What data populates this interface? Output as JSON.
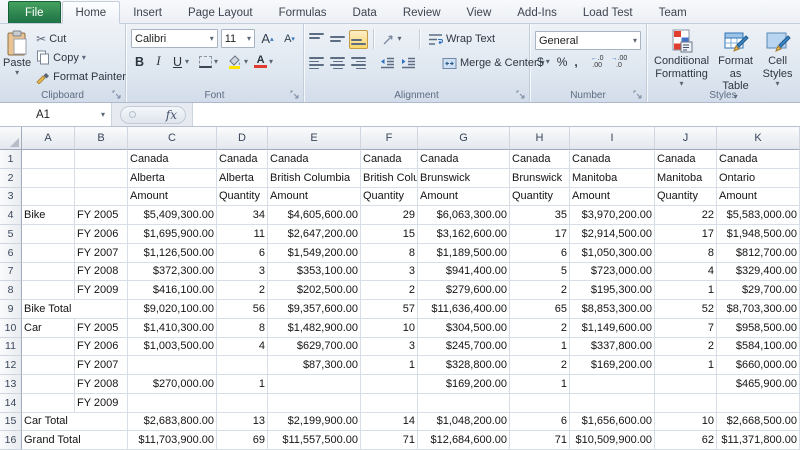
{
  "ribbon": {
    "file_tab": "File",
    "tabs": [
      "Home",
      "Insert",
      "Page Layout",
      "Formulas",
      "Data",
      "Review",
      "View",
      "Add-Ins",
      "Load Test",
      "Team"
    ],
    "active_tab": "Home",
    "groups": {
      "clipboard": {
        "label": "Clipboard",
        "paste": "Paste",
        "cut": "Cut",
        "copy": "Copy",
        "format_painter": "Format Painter"
      },
      "font": {
        "label": "Font",
        "family": "Calibri",
        "size": "11",
        "bold": "B",
        "italic": "I",
        "underline": "U",
        "grow_letter": "A",
        "shrink_letter": "A",
        "color_letter": "A"
      },
      "alignment": {
        "label": "Alignment",
        "wrap_text": "Wrap Text",
        "merge_center": "Merge & Center"
      },
      "number": {
        "label": "Number",
        "format": "General",
        "currency": "$",
        "percent": "%",
        "comma": ",",
        "inc_decimal_top": ".0",
        "inc_decimal_bottom": ".00",
        "dec_decimal_top": ".00",
        "dec_decimal_bottom": ".0"
      },
      "styles": {
        "label": "Styles",
        "conditional": "Conditional Formatting",
        "format_table": "Format as Table",
        "cell_styles": "Cell Styles"
      }
    }
  },
  "formula_bar": {
    "name_box": "A1",
    "fx": "fx"
  },
  "sheet": {
    "columns": [
      "A",
      "B",
      "C",
      "D",
      "E",
      "F",
      "G",
      "H",
      "I",
      "J",
      "K"
    ],
    "rows": [
      {
        "n": "1",
        "cells": [
          "",
          "",
          "Canada",
          "Canada",
          "Canada",
          "Canada",
          "Canada",
          "Canada",
          "Canada",
          "Canada",
          "Canada"
        ]
      },
      {
        "n": "2",
        "cells": [
          "",
          "",
          "Alberta",
          "Alberta",
          "British Columbia",
          "British Columbia",
          "Brunswick",
          "Brunswick",
          "Manitoba",
          "Manitoba",
          "Ontario"
        ]
      },
      {
        "n": "3",
        "cells": [
          "",
          "",
          "Amount",
          "Quantity",
          "Amount",
          "Quantity",
          "Amount",
          "Quantity",
          "Amount",
          "Quantity",
          "Amount"
        ]
      },
      {
        "n": "4",
        "cells": [
          "Bike",
          "FY 2005",
          "$5,409,300.00",
          "34",
          "$4,605,600.00",
          "29",
          "$6,063,300.00",
          "35",
          "$3,970,200.00",
          "22",
          "$5,583,000.00"
        ]
      },
      {
        "n": "5",
        "cells": [
          "",
          "FY 2006",
          "$1,695,900.00",
          "11",
          "$2,647,200.00",
          "15",
          "$3,162,600.00",
          "17",
          "$2,914,500.00",
          "17",
          "$1,948,500.00"
        ]
      },
      {
        "n": "6",
        "cells": [
          "",
          "FY 2007",
          "$1,126,500.00",
          "6",
          "$1,549,200.00",
          "8",
          "$1,189,500.00",
          "6",
          "$1,050,300.00",
          "8",
          "$812,700.00"
        ]
      },
      {
        "n": "7",
        "cells": [
          "",
          "FY 2008",
          "$372,300.00",
          "3",
          "$353,100.00",
          "3",
          "$941,400.00",
          "5",
          "$723,000.00",
          "4",
          "$329,400.00"
        ]
      },
      {
        "n": "8",
        "cells": [
          "",
          "FY 2009",
          "$416,100.00",
          "2",
          "$202,500.00",
          "2",
          "$279,600.00",
          "2",
          "$195,300.00",
          "1",
          "$29,700.00"
        ]
      },
      {
        "n": "9",
        "cells": [
          "Bike Total",
          "",
          "$9,020,100.00",
          "56",
          "$9,357,600.00",
          "57",
          "$11,636,400.00",
          "65",
          "$8,853,300.00",
          "52",
          "$8,703,300.00"
        ]
      },
      {
        "n": "10",
        "cells": [
          "Car",
          "FY 2005",
          "$1,410,300.00",
          "8",
          "$1,482,900.00",
          "10",
          "$304,500.00",
          "2",
          "$1,149,600.00",
          "7",
          "$958,500.00"
        ]
      },
      {
        "n": "11",
        "cells": [
          "",
          "FY 2006",
          "$1,003,500.00",
          "4",
          "$629,700.00",
          "3",
          "$245,700.00",
          "1",
          "$337,800.00",
          "2",
          "$584,100.00"
        ]
      },
      {
        "n": "12",
        "cells": [
          "",
          "FY 2007",
          "",
          "",
          "$87,300.00",
          "1",
          "$328,800.00",
          "2",
          "$169,200.00",
          "1",
          "$660,000.00"
        ]
      },
      {
        "n": "13",
        "cells": [
          "",
          "FY 2008",
          "$270,000.00",
          "1",
          "",
          "",
          "$169,200.00",
          "1",
          "",
          "",
          "$465,900.00"
        ]
      },
      {
        "n": "14",
        "cells": [
          "",
          "FY 2009",
          "",
          "",
          "",
          "",
          "",
          "",
          "",
          "",
          ""
        ]
      },
      {
        "n": "15",
        "cells": [
          "Car Total",
          "",
          "$2,683,800.00",
          "13",
          "$2,199,900.00",
          "14",
          "$1,048,200.00",
          "6",
          "$1,656,600.00",
          "10",
          "$2,668,500.00"
        ]
      },
      {
        "n": "16",
        "cells": [
          "Grand Total",
          "",
          "$11,703,900.00",
          "69",
          "$11,557,500.00",
          "71",
          "$12,684,600.00",
          "71",
          "$10,509,900.00",
          "62",
          "$11,371,800.00"
        ]
      }
    ]
  },
  "colors": {
    "file_tab_green": "#1e7145",
    "active_tool_highlight": "#fbd768",
    "fill_color_bar": "#ffe400",
    "font_color_bar": "#e03c31",
    "gridline": "#d8dee8"
  }
}
